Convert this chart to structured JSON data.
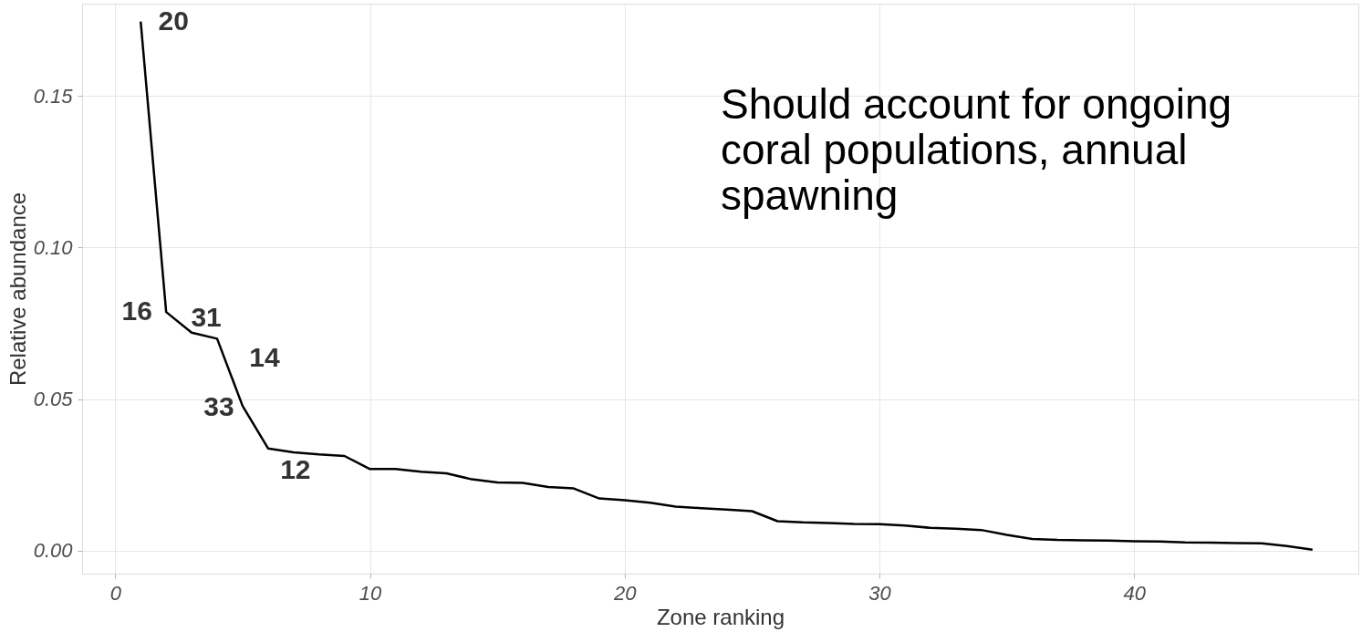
{
  "chart_data": {
    "type": "line",
    "xlabel": "Zone ranking",
    "ylabel": "Relative abundance",
    "x": [
      1,
      2,
      3,
      4,
      5,
      6,
      7,
      8,
      9,
      10,
      11,
      12,
      13,
      14,
      15,
      16,
      17,
      18,
      19,
      20,
      21,
      22,
      23,
      24,
      25,
      26,
      27,
      28,
      29,
      30,
      31,
      32,
      33,
      34,
      35,
      36,
      37,
      38,
      39,
      40,
      41,
      42,
      43,
      44,
      45,
      46,
      47
    ],
    "series": [
      {
        "color": "#000000",
        "values": [
          0.1745,
          0.0787,
          0.0719,
          0.0699,
          0.0477,
          0.0337,
          0.0324,
          0.0317,
          0.0312,
          0.0269,
          0.0269,
          0.026,
          0.0255,
          0.0235,
          0.0225,
          0.0223,
          0.021,
          0.0205,
          0.0172,
          0.0166,
          0.0158,
          0.0145,
          0.014,
          0.0135,
          0.013,
          0.0097,
          0.0093,
          0.0091,
          0.0088,
          0.0087,
          0.0083,
          0.0075,
          0.0072,
          0.0068,
          0.0052,
          0.0038,
          0.0035,
          0.0034,
          0.0033,
          0.0031,
          0.003,
          0.0027,
          0.0026,
          0.0025,
          0.0024,
          0.0015,
          0.0003
        ]
      }
    ],
    "xlim": [
      -1.3,
      48.8
    ],
    "ylim": [
      -0.0076,
      0.1804
    ],
    "xticks": [
      0,
      10,
      20,
      30,
      40
    ],
    "yticks": [
      {
        "value": 0,
        "label": "0.00"
      },
      {
        "value": 0.05,
        "label": "0.05"
      },
      {
        "value": 0.1,
        "label": "0.10"
      },
      {
        "value": 0.15,
        "label": "0.15"
      }
    ],
    "grid": true,
    "marker": "none",
    "line_style": "solid",
    "annotations": [
      {
        "text": "20",
        "x": 1,
        "y": 0.1745
      },
      {
        "text": "16",
        "x": 2,
        "y": 0.0787
      },
      {
        "text": "31",
        "x": 3,
        "y": 0.0719
      },
      {
        "text": "14",
        "x": 4,
        "y": 0.0699
      },
      {
        "text": "33",
        "x": 5,
        "y": 0.0477
      },
      {
        "text": "12",
        "x": 6,
        "y": 0.0337
      },
      "Should account for ongoing\ncoral populations, annual\nspawning"
    ]
  }
}
